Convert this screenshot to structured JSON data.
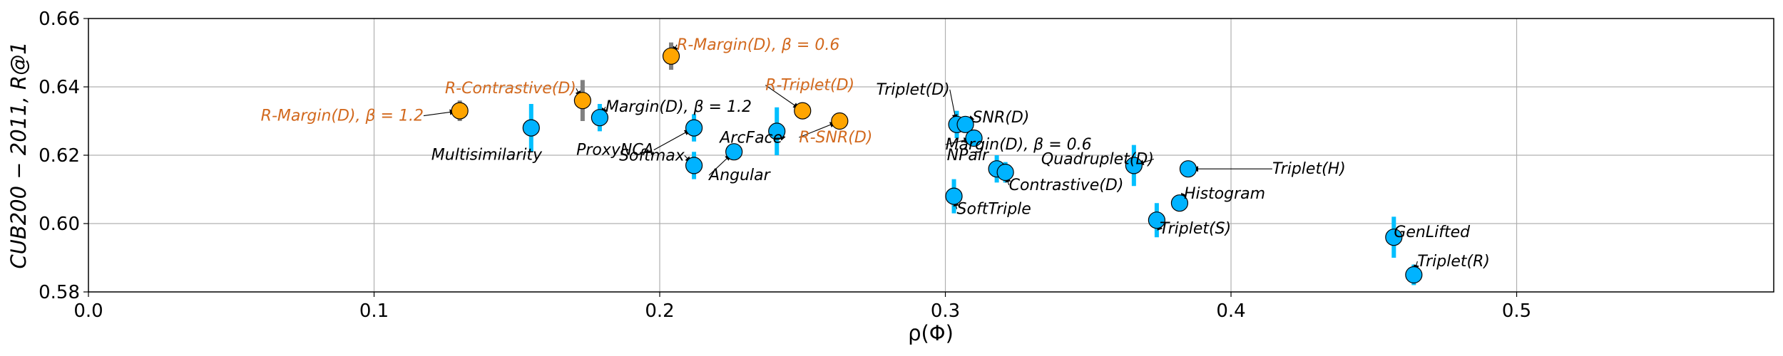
{
  "chart_data": {
    "type": "scatter",
    "title": "",
    "xlabel": "ρ(Φ)",
    "ylabel": "CUB200 − 2011, R@1",
    "xlim": [
      0.0,
      0.59
    ],
    "ylim": [
      0.58,
      0.66
    ],
    "xticks": [
      0.0,
      0.1,
      0.2,
      0.3,
      0.4,
      0.5
    ],
    "xtick_labels": [
      "0.0",
      "0.1",
      "0.2",
      "0.3",
      "0.4",
      "0.5"
    ],
    "yticks": [
      0.58,
      0.6,
      0.62,
      0.64,
      0.66
    ],
    "ytick_labels": [
      "0.58",
      "0.60",
      "0.62",
      "0.64",
      "0.66"
    ],
    "grid": true,
    "legend": "none",
    "colors": {
      "baseline_point": "#00b3ff",
      "baseline_errorbar": "#00bfff",
      "regularized_point": "#ffa500",
      "regularized_errorbar": "#808080",
      "regularized_label": "#d2691e",
      "baseline_label": "#000000"
    },
    "series": [
      {
        "group": "baseline",
        "points": [
          {
            "label": "Multisimilarity",
            "x": 0.155,
            "y": 0.628,
            "err": 0.007
          },
          {
            "label": "Margin(D), β = 1.2",
            "x": 0.179,
            "y": 0.631,
            "err": 0.004
          },
          {
            "label": "ProxyNCA",
            "x": 0.212,
            "y": 0.628,
            "err": 0.004
          },
          {
            "label": "Softmax",
            "x": 0.212,
            "y": 0.617,
            "err": 0.004
          },
          {
            "label": "Angular",
            "x": 0.226,
            "y": 0.621,
            "err": 0.002
          },
          {
            "label": "ArcFace",
            "x": 0.241,
            "y": 0.627,
            "err": 0.007
          },
          {
            "label": "Triplet(D)",
            "x": 0.304,
            "y": 0.629,
            "err": 0.004
          },
          {
            "label": "SNR(D)",
            "x": 0.307,
            "y": 0.629,
            "err": 0.002
          },
          {
            "label": "Margin(D), β = 0.6",
            "x": 0.31,
            "y": 0.625,
            "err": 0.002
          },
          {
            "label": "NPair",
            "x": 0.318,
            "y": 0.616,
            "err": 0.004
          },
          {
            "label": "Contrastive(D)",
            "x": 0.321,
            "y": 0.615,
            "err": 0.003
          },
          {
            "label": "SoftTriple",
            "x": 0.303,
            "y": 0.608,
            "err": 0.005
          },
          {
            "label": "Quadruplet(D)",
            "x": 0.366,
            "y": 0.617,
            "err": 0.006
          },
          {
            "label": "Triplet(H)",
            "x": 0.385,
            "y": 0.616,
            "err": 0.002
          },
          {
            "label": "Histogram",
            "x": 0.382,
            "y": 0.606,
            "err": 0.002
          },
          {
            "label": "Triplet(S)",
            "x": 0.374,
            "y": 0.601,
            "err": 0.005
          },
          {
            "label": "GenLifted",
            "x": 0.457,
            "y": 0.596,
            "err": 0.006
          },
          {
            "label": "Triplet(R)",
            "x": 0.464,
            "y": 0.585,
            "err": 0.003
          }
        ]
      },
      {
        "group": "regularized",
        "points": [
          {
            "label": "R-Margin(D), β = 1.2",
            "x": 0.13,
            "y": 0.633,
            "err": 0.003
          },
          {
            "label": "R-Contrastive(D)",
            "x": 0.173,
            "y": 0.636,
            "err": 0.006
          },
          {
            "label": "R-Margin(D), β = 0.6",
            "x": 0.204,
            "y": 0.649,
            "err": 0.004
          },
          {
            "label": "R-Triplet(D)",
            "x": 0.25,
            "y": 0.633,
            "err": 0.002
          },
          {
            "label": "R-SNR(D)",
            "x": 0.263,
            "y": 0.63,
            "err": 0.002
          }
        ]
      }
    ]
  }
}
